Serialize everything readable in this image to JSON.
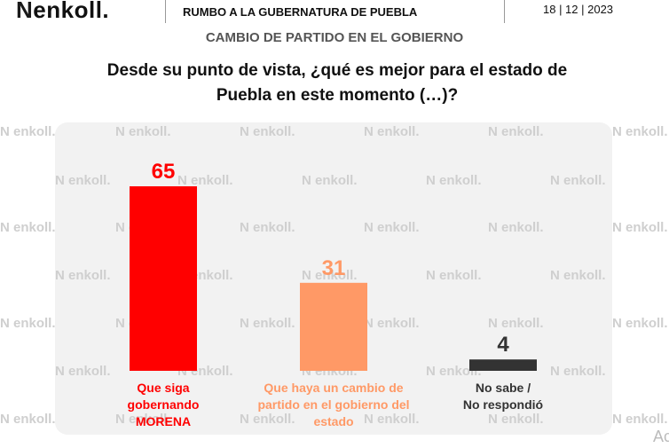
{
  "header": {
    "logo_text": "enkoll.",
    "title": "RUMBO A LA GUBERNATURA DE PUEBLA",
    "date": "18 | 12 | 2023"
  },
  "subtitle": "CAMBIO DE PARTIDO EN EL GOBIERNO",
  "question_line1": "Desde su punto de vista, ¿qué es mejor para el estado de",
  "question_line2": "Puebla en este momento (…)?",
  "watermark_text": "enkoll.",
  "corner_text": "Ac",
  "chart_data": {
    "type": "bar",
    "categories": [
      [
        "Que siga",
        "gobernando",
        "MORENA"
      ],
      [
        "Que haya un cambio de",
        "partido en el gobierno del",
        "estado"
      ],
      [
        "No sabe /",
        "No respondió"
      ]
    ],
    "values": [
      65,
      31,
      4
    ],
    "colors": [
      "#ff0000",
      "#ff9966",
      "#333333"
    ],
    "label_colors": [
      "#ff0000",
      "#ff9966",
      "#333333"
    ],
    "ylim": [
      0,
      70
    ],
    "grid": false,
    "legend": "none"
  }
}
